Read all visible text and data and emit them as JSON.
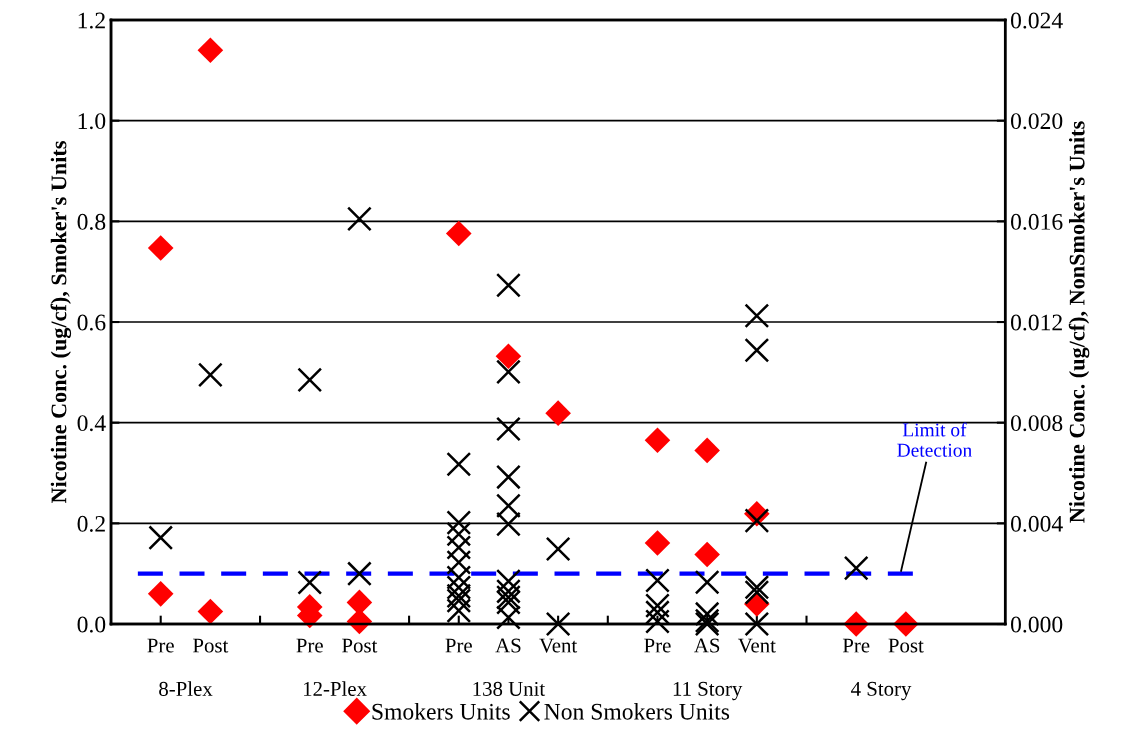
{
  "chart_data": {
    "type": "scatter",
    "ylabel": "Nicotine Conc. (ug/cf), Smoker's Units",
    "y2label": "Nicotine Conc. (ug/cf), NonSmoker's Units",
    "categories": [
      "Pre",
      "Post",
      null,
      "Pre",
      "Post",
      null,
      "Pre",
      "AS",
      "Vent",
      null,
      "Pre",
      "AS",
      "Vent",
      null,
      "Pre",
      "Post"
    ],
    "ylim": [
      0,
      1.2
    ],
    "yticks": [
      {
        "value": 0,
        "label": "0.0"
      },
      {
        "value": 0.2,
        "label": "0.2"
      },
      {
        "value": 0.4,
        "label": "0.4"
      },
      {
        "value": 0.6,
        "label": "0.6"
      },
      {
        "value": 0.8,
        "label": "0.8"
      },
      {
        "value": 1.0,
        "label": "1.0"
      },
      {
        "value": 1.2,
        "label": "1.2"
      }
    ],
    "y2lim": [
      0,
      0.024
    ],
    "y2ticks": [
      {
        "value": 0,
        "label": "0.000"
      },
      {
        "value": 0.004,
        "label": "0.004"
      },
      {
        "value": 0.008,
        "label": "0.008"
      },
      {
        "value": 0.012,
        "label": "0.012"
      },
      {
        "value": 0.016,
        "label": "0.016"
      },
      {
        "value": 0.02,
        "label": "0.020"
      },
      {
        "value": 0.024,
        "label": "0.024"
      }
    ],
    "grid": "y",
    "legend": "bottom",
    "series": [
      {
        "name": "Smokers Units",
        "color": "#ff0000",
        "marker": "diamond",
        "values": [
          0.747,
          1.14,
          null,
          0.034,
          0.043,
          null,
          0.776,
          0.532,
          0.419,
          null,
          0.365,
          0.345,
          0.219,
          null,
          0,
          0
        ]
      },
      {
        "color": "#ff0000",
        "marker": "diamond",
        "values": [
          0.06,
          0.025,
          null,
          0.017,
          0.005,
          null,
          null,
          null,
          null,
          null,
          0.161,
          0.138,
          0.04,
          null,
          null,
          null
        ]
      },
      {
        "name": "Non Smokers Units",
        "color": "#000000",
        "marker": "cross",
        "axis": "y2",
        "values": [
          0.00343,
          0.0099,
          null,
          0.0097,
          0.0161,
          null,
          0.00635,
          0.01346,
          0.00298,
          null,
          0.00173,
          0.00166,
          0.01225,
          null,
          0.00222,
          null
        ]
      },
      {
        "color": "#000000",
        "marker": "cross",
        "axis": "y2",
        "values": [
          null,
          null,
          null,
          0.00165,
          0.002,
          null,
          0.00403,
          0.01002,
          0,
          null,
          0.00073,
          0.0004,
          0.01088,
          null,
          null,
          null
        ]
      },
      {
        "color": "#000000",
        "marker": "cross",
        "axis": "y2",
        "values": [
          null,
          null,
          null,
          null,
          null,
          null,
          0.00357,
          0.00775,
          null,
          null,
          0.00046,
          0.00013,
          0.00411,
          null,
          null,
          null
        ]
      },
      {
        "color": "#000000",
        "marker": "cross",
        "axis": "y2",
        "values": [
          null,
          null,
          null,
          null,
          null,
          null,
          0.00304,
          0.00584,
          null,
          null,
          0.0001,
          0,
          0.00146,
          null,
          null,
          null
        ]
      },
      {
        "color": "#000000",
        "marker": "cross",
        "axis": "y2",
        "values": [
          null,
          null,
          null,
          null,
          null,
          null,
          0.00245,
          0.0047,
          null,
          null,
          null,
          null,
          0.00126,
          null,
          null,
          null
        ]
      },
      {
        "color": "#000000",
        "marker": "cross",
        "axis": "y2",
        "values": [
          null,
          null,
          null,
          null,
          null,
          null,
          0.00185,
          0.00397,
          null,
          null,
          null,
          null,
          0,
          null,
          null,
          null
        ]
      },
      {
        "color": "#000000",
        "marker": "cross",
        "axis": "y2",
        "values": [
          null,
          null,
          null,
          null,
          null,
          null,
          0.00145,
          0.0017,
          null,
          null,
          null,
          null,
          null,
          null,
          null,
          null
        ]
      },
      {
        "color": "#000000",
        "marker": "cross",
        "axis": "y2",
        "values": [
          null,
          null,
          null,
          null,
          null,
          null,
          0.00112,
          0.0013,
          null,
          null,
          null,
          null,
          null,
          null,
          null,
          null
        ]
      },
      {
        "color": "#000000",
        "marker": "cross",
        "axis": "y2",
        "values": [
          null,
          null,
          null,
          null,
          null,
          null,
          0.00093,
          0.00106,
          null,
          null,
          null,
          null,
          null,
          null,
          null,
          null
        ]
      },
      {
        "color": "#000000",
        "marker": "cross",
        "axis": "y2",
        "values": [
          null,
          null,
          null,
          null,
          null,
          null,
          0.00053,
          0.00086,
          null,
          null,
          null,
          null,
          null,
          null,
          null,
          null
        ]
      },
      {
        "color": "#000000",
        "marker": "cross",
        "axis": "y2",
        "values": [
          null,
          null,
          null,
          null,
          null,
          null,
          null,
          0.00026,
          null,
          null,
          null,
          null,
          null,
          null,
          null,
          null
        ]
      }
    ],
    "ref_lines": [
      {
        "axis": "y",
        "value": 0.1,
        "label": "Limit of\nDetection",
        "color": "#0000ff",
        "line_style": "dashed"
      }
    ],
    "annotations": [
      "8-Plex",
      "12-Plex",
      "138 Unit",
      "11 Story",
      "4 Story"
    ]
  }
}
